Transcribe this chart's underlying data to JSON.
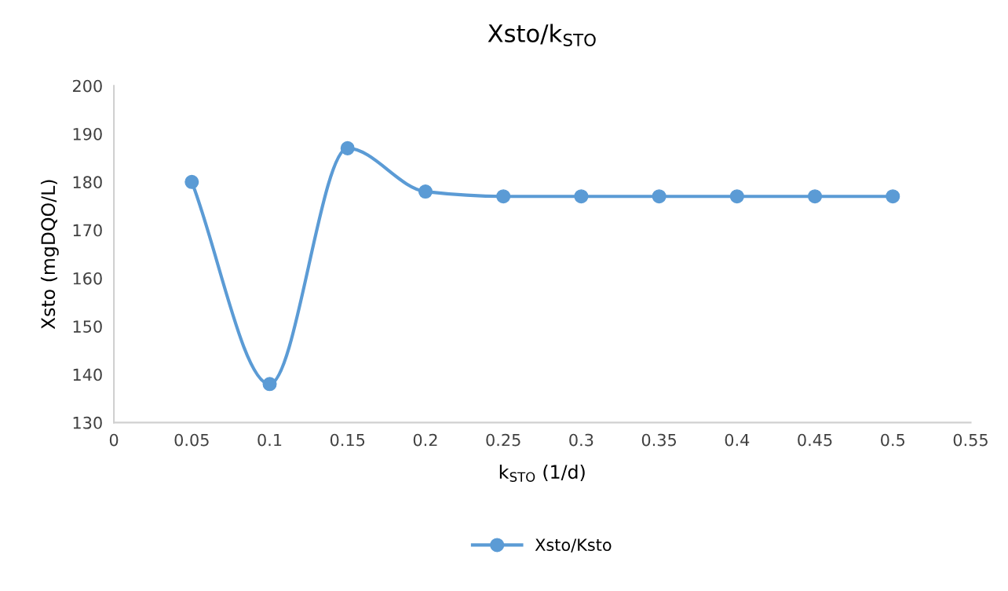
{
  "chart_data": {
    "type": "line",
    "title": "Xsto/k$_{STO}$",
    "xlabel": "k$_{STO}$ (1/d)",
    "ylabel": "Xsto (mgDQO/L)",
    "x": [
      0.05,
      0.1,
      0.15,
      0.2,
      0.25,
      0.3,
      0.35,
      0.4,
      0.45,
      0.5
    ],
    "series": [
      {
        "name": "Xsto/Ksto",
        "color": "#5b9bd5",
        "values": [
          180,
          138,
          187,
          178,
          177,
          177,
          177,
          177,
          177,
          177
        ]
      }
    ],
    "xlim": [
      0,
      0.55
    ],
    "xticks": [
      0,
      0.05,
      0.1,
      0.15,
      0.2,
      0.25,
      0.3,
      0.35,
      0.4,
      0.45,
      0.5,
      0.55
    ],
    "ylim": [
      130,
      200
    ],
    "yticks": [
      130,
      140,
      150,
      160,
      170,
      180,
      190,
      200
    ],
    "grid": false,
    "legend": "bottom",
    "marker": "circle",
    "line_style": "solid"
  }
}
